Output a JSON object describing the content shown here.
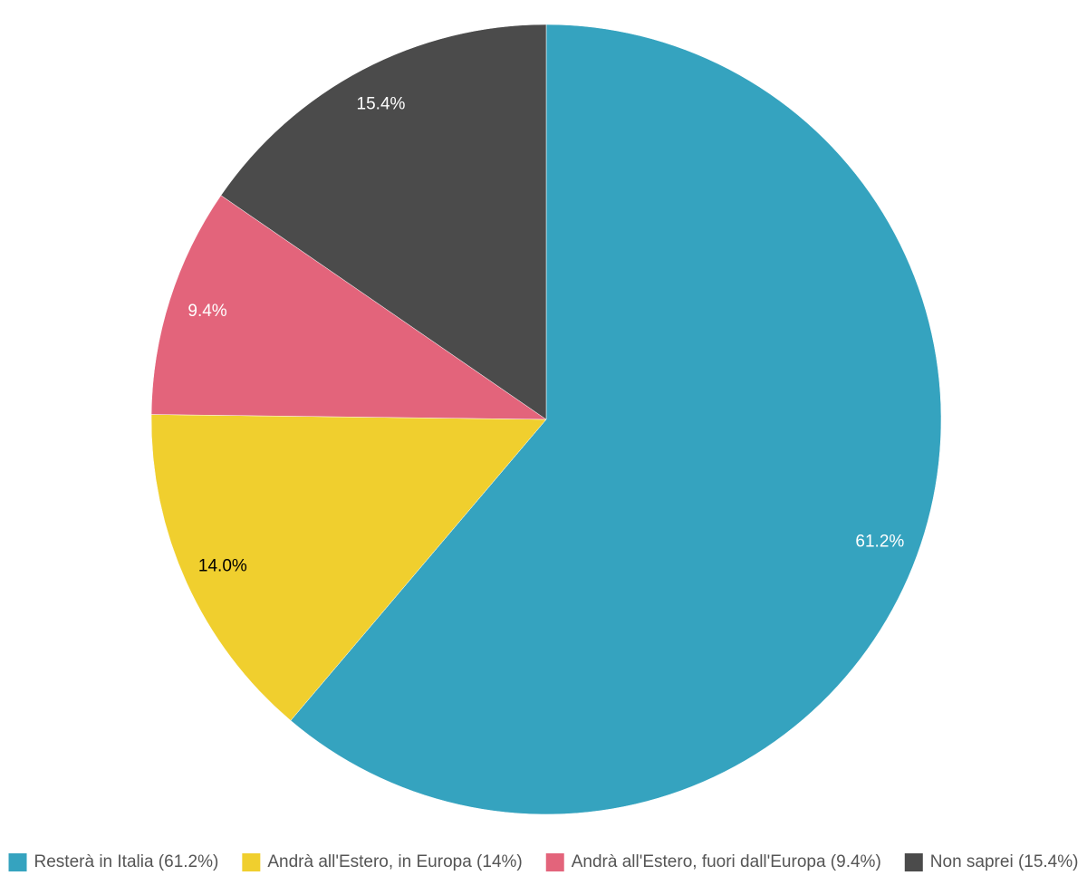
{
  "chart_data": {
    "type": "pie",
    "categories": [
      "Resterà in Italia (61.2%)",
      "Andrà all'Estero, in Europa (14%)",
      "Andrà all'Estero, fuori dall'Europa (9.4%)",
      "Non saprei (15.4%)"
    ],
    "values": [
      61.2,
      14.0,
      9.4,
      15.4
    ],
    "value_labels": [
      "61.2%",
      "14.0%",
      "9.4%",
      "15.4%"
    ],
    "colors": [
      "#35a3bf",
      "#f0cf2e",
      "#e3647b",
      "#4b4b4b"
    ],
    "legend": "bottom"
  }
}
